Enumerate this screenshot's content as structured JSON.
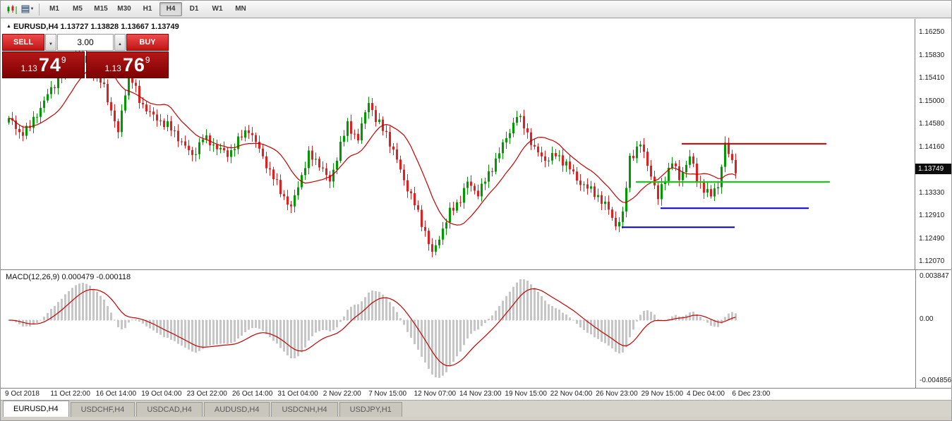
{
  "toolbar": {
    "timeframes": [
      "M1",
      "M5",
      "M15",
      "M30",
      "H1",
      "H4",
      "D1",
      "W1",
      "MN"
    ],
    "selected_timeframe": "H4"
  },
  "icons": {
    "header_marker": "▲",
    "dropdown_caret": "▼",
    "stepper_up": "▲"
  },
  "chart": {
    "header": "EURUSD,H4 1.13727 1.13828 1.13667 1.13749",
    "symbol": "EURUSD,H4",
    "current_price": "1.13749",
    "price_axis": [
      "1.16250",
      "1.15830",
      "1.15410",
      "1.15000",
      "1.14580",
      "1.14160",
      "1.13330",
      "1.12910",
      "1.12490",
      "1.12070"
    ],
    "time_axis": [
      "9 Oct 2018",
      "11 Oct 22:00",
      "16 Oct 14:00",
      "19 Oct 04:00",
      "23 Oct 22:00",
      "26 Oct 14:00",
      "31 Oct 04:00",
      "2 Nov 22:00",
      "7 Nov 15:00",
      "12 Nov 07:00",
      "14 Nov 23:00",
      "19 Nov 15:00",
      "22 Nov 04:00",
      "26 Nov 23:00",
      "29 Nov 15:00",
      "4 Dec 04:00",
      "6 Dec 23:00"
    ]
  },
  "trade_panel": {
    "sell_label": "SELL",
    "buy_label": "BUY",
    "volume": "3.00",
    "sell_price": {
      "prefix": "1.13",
      "big": "74",
      "sup": "9"
    },
    "buy_price": {
      "prefix": "1.13",
      "big": "76",
      "sup": "9"
    }
  },
  "macd": {
    "label": "MACD(12,26,9) 0.000479 -0.000118",
    "axis_top": "0.003847",
    "axis_zero": "0.00",
    "axis_bottom": "-0.004856"
  },
  "tabs": [
    {
      "label": "EURUSD,H4",
      "active": true
    },
    {
      "label": "USDCHF,H4",
      "active": false
    },
    {
      "label": "USDCAD,H4",
      "active": false
    },
    {
      "label": "AUDUSD,H4",
      "active": false
    },
    {
      "label": "USDCNH,H4",
      "active": false
    },
    {
      "label": "USDJPY,H1",
      "active": false
    }
  ],
  "colors": {
    "bull": "#009a00",
    "bear": "#dd2020",
    "ma": "#c40000",
    "signal": "#c40000",
    "histogram": "#c6c6c6",
    "trade_red": "#c01414",
    "badge_bg": "#0d0d0d"
  },
  "chart_data": {
    "type": "candlestick",
    "title": "EURUSD,H4",
    "ohlc_header": {
      "open": 1.13727,
      "high": 1.13828,
      "low": 1.13667,
      "close": 1.13749
    },
    "y_axis": {
      "ticks": [
        1.1625,
        1.1583,
        1.1541,
        1.15,
        1.1458,
        1.1416,
        1.1333,
        1.1291,
        1.1249,
        1.1207
      ],
      "current": 1.13749
    },
    "x_axis": {
      "ticks": [
        "9 Oct 2018",
        "11 Oct 22:00",
        "16 Oct 14:00",
        "19 Oct 04:00",
        "23 Oct 22:00",
        "26 Oct 14:00",
        "31 Oct 04:00",
        "2 Nov 22:00",
        "7 Nov 15:00",
        "12 Nov 07:00",
        "14 Nov 23:00",
        "19 Nov 15:00",
        "22 Nov 04:00",
        "26 Nov 23:00",
        "29 Nov 15:00",
        "4 Dec 04:00",
        "6 Dec 23:00"
      ]
    },
    "bars_total": 207,
    "ma_period": 13,
    "price_path_keypoints": [
      [
        0,
        1.1468
      ],
      [
        3,
        1.144
      ],
      [
        6,
        1.1452
      ],
      [
        10,
        1.15
      ],
      [
        16,
        1.156
      ],
      [
        19,
        1.159
      ],
      [
        23,
        1.1565
      ],
      [
        27,
        1.1525
      ],
      [
        31,
        1.144
      ],
      [
        34,
        1.1555
      ],
      [
        37,
        1.15
      ],
      [
        41,
        1.147
      ],
      [
        45,
        1.1455
      ],
      [
        49,
        1.1425
      ],
      [
        52,
        1.1398
      ],
      [
        55,
        1.1432
      ],
      [
        59,
        1.1415
      ],
      [
        62,
        1.14
      ],
      [
        66,
        1.1435
      ],
      [
        68,
        1.1448
      ],
      [
        71,
        1.141
      ],
      [
        74,
        1.137
      ],
      [
        77,
        1.1335
      ],
      [
        80,
        1.1302
      ],
      [
        82,
        1.1345
      ],
      [
        85,
        1.14
      ],
      [
        88,
        1.1385
      ],
      [
        91,
        1.135
      ],
      [
        94,
        1.142
      ],
      [
        96,
        1.1455
      ],
      [
        99,
        1.143
      ],
      [
        102,
        1.15
      ],
      [
        104,
        1.1465
      ],
      [
        107,
        1.144
      ],
      [
        110,
        1.139
      ],
      [
        112,
        1.1355
      ],
      [
        115,
        1.131
      ],
      [
        118,
        1.126
      ],
      [
        120,
        1.1218
      ],
      [
        122,
        1.125
      ],
      [
        125,
        1.1295
      ],
      [
        128,
        1.132
      ],
      [
        130,
        1.135
      ],
      [
        133,
        1.133
      ],
      [
        136,
        1.1365
      ],
      [
        139,
        1.1405
      ],
      [
        142,
        1.1445
      ],
      [
        144,
        1.1472
      ],
      [
        146,
        1.1455
      ],
      [
        149,
        1.141
      ],
      [
        152,
        1.1392
      ],
      [
        155,
        1.14
      ],
      [
        158,
        1.1385
      ],
      [
        161,
        1.1355
      ],
      [
        164,
        1.134
      ],
      [
        167,
        1.1325
      ],
      [
        170,
        1.13
      ],
      [
        172,
        1.1272
      ],
      [
        174,
        1.129
      ],
      [
        176,
        1.1395
      ],
      [
        179,
        1.142
      ],
      [
        182,
        1.1365
      ],
      [
        184,
        1.132
      ],
      [
        186,
        1.136
      ],
      [
        188,
        1.139
      ],
      [
        190,
        1.1355
      ],
      [
        193,
        1.14
      ],
      [
        195,
        1.1355
      ],
      [
        197,
        1.134
      ],
      [
        199,
        1.1325
      ],
      [
        201,
        1.1345
      ],
      [
        203,
        1.142
      ],
      [
        205,
        1.1385
      ],
      [
        206,
        1.1375
      ]
    ],
    "horizontal_lines": [
      {
        "name": "resistance-red",
        "color": "#cc0000",
        "price": 1.1421,
        "bar_start": 191,
        "bar_end": 232
      },
      {
        "name": "level-green",
        "color": "#00d800",
        "price": 1.1351,
        "bar_start": 178,
        "bar_end": 233
      },
      {
        "name": "support-blue-upper",
        "color": "#0000cc",
        "price": 1.1303,
        "bar_start": 185,
        "bar_end": 227
      },
      {
        "name": "support-blue-lower",
        "color": "#0000cc",
        "price": 1.1268,
        "bar_start": 174,
        "bar_end": 206
      }
    ],
    "indicator": {
      "type": "MACD",
      "fast": 12,
      "slow": 26,
      "signal": 9,
      "current_values": [
        0.000479,
        -0.000118
      ],
      "y_axis_ticks": [
        0.003847,
        0.0,
        -0.004856
      ]
    }
  }
}
